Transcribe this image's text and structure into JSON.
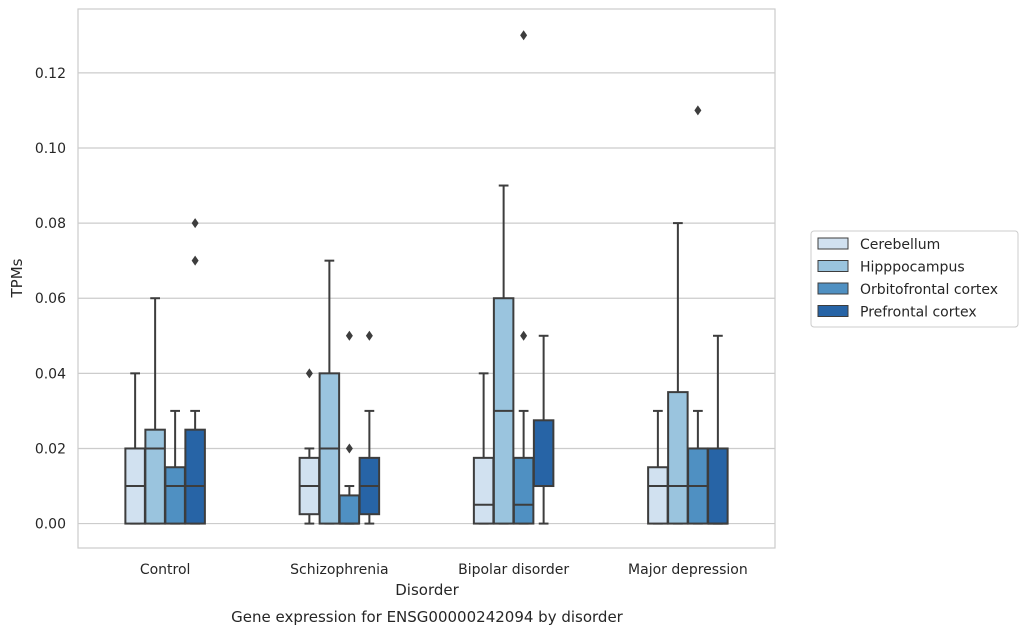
{
  "chart_data": {
    "type": "box",
    "title": "Gene expression for ENSG00000242094 by disorder",
    "xlabel": "Disorder",
    "ylabel": "TPMs",
    "categories": [
      "Control",
      "Schizophrenia",
      "Bipolar disorder",
      "Major depression"
    ],
    "yticks": [
      "0.00",
      "0.02",
      "0.04",
      "0.06",
      "0.08",
      "0.10",
      "0.12"
    ],
    "ylim": [
      -0.0065,
      0.137
    ],
    "grid": true,
    "legend_position": "right",
    "colors": [
      "#d1e1f0",
      "#9ac4de",
      "#4f90c2",
      "#2764a6"
    ],
    "series": [
      {
        "name": "Cerebellum",
        "boxes": [
          {
            "q1": 0.0,
            "median": 0.01,
            "q3": 0.02,
            "whisker_low": 0.0,
            "whisker_high": 0.04,
            "outliers": []
          },
          {
            "q1": 0.0025,
            "median": 0.01,
            "q3": 0.0175,
            "whisker_low": 0.0,
            "whisker_high": 0.02,
            "outliers": [
              0.04
            ]
          },
          {
            "q1": 0.0,
            "median": 0.005,
            "q3": 0.0175,
            "whisker_low": 0.0,
            "whisker_high": 0.04,
            "outliers": []
          },
          {
            "q1": 0.0,
            "median": 0.01,
            "q3": 0.015,
            "whisker_low": 0.0,
            "whisker_high": 0.03,
            "outliers": []
          }
        ]
      },
      {
        "name": "Hipppocampus",
        "boxes": [
          {
            "q1": 0.0,
            "median": 0.02,
            "q3": 0.025,
            "whisker_low": 0.0,
            "whisker_high": 0.06,
            "outliers": []
          },
          {
            "q1": 0.0,
            "median": 0.02,
            "q3": 0.04,
            "whisker_low": 0.0,
            "whisker_high": 0.07,
            "outliers": []
          },
          {
            "q1": 0.0,
            "median": 0.03,
            "q3": 0.06,
            "whisker_low": 0.0,
            "whisker_high": 0.09,
            "outliers": []
          },
          {
            "q1": 0.0,
            "median": 0.01,
            "q3": 0.035,
            "whisker_low": 0.0,
            "whisker_high": 0.08,
            "outliers": []
          }
        ]
      },
      {
        "name": "Orbitofrontal cortex",
        "boxes": [
          {
            "q1": 0.0,
            "median": 0.01,
            "q3": 0.015,
            "whisker_low": 0.0,
            "whisker_high": 0.03,
            "outliers": []
          },
          {
            "q1": 0.0,
            "median": 0.0,
            "q3": 0.0075,
            "whisker_low": 0.0,
            "whisker_high": 0.01,
            "outliers": [
              0.02,
              0.05
            ]
          },
          {
            "q1": 0.0,
            "median": 0.005,
            "q3": 0.0175,
            "whisker_low": 0.0,
            "whisker_high": 0.03,
            "outliers": [
              0.05,
              0.13
            ]
          },
          {
            "q1": 0.0,
            "median": 0.01,
            "q3": 0.02,
            "whisker_low": 0.0,
            "whisker_high": 0.03,
            "outliers": [
              0.11
            ]
          }
        ]
      },
      {
        "name": "Prefrontal cortex",
        "boxes": [
          {
            "q1": 0.0,
            "median": 0.01,
            "q3": 0.025,
            "whisker_low": 0.0,
            "whisker_high": 0.03,
            "outliers": [
              0.07,
              0.08
            ]
          },
          {
            "q1": 0.0025,
            "median": 0.01,
            "q3": 0.0175,
            "whisker_low": 0.0,
            "whisker_high": 0.03,
            "outliers": [
              0.05
            ]
          },
          {
            "q1": 0.01,
            "median": 0.01,
            "q3": 0.0275,
            "whisker_low": 0.0,
            "whisker_high": 0.05,
            "outliers": []
          },
          {
            "q1": 0.0,
            "median": 0.0,
            "q3": 0.02,
            "whisker_low": 0.0,
            "whisker_high": 0.05,
            "outliers": []
          }
        ]
      }
    ]
  }
}
